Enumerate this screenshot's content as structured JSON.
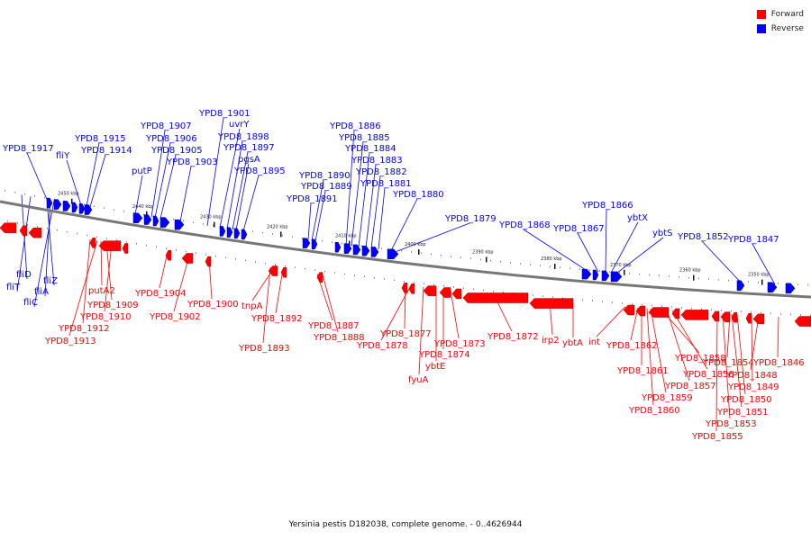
{
  "caption": "Yersinia pestis D182038, complete genome. - 0..4626944",
  "legend": {
    "forward": {
      "label": "Forward",
      "color": "#ff0000"
    },
    "reverse": {
      "label": "Reverse",
      "color": "#0000ff"
    }
  },
  "colors": {
    "backbone": "#777777",
    "forward": "#ff0000",
    "reverse": "#0000ff"
  },
  "scale_ticks": [
    "2450 kbp",
    "2440 kbp",
    "2430 kbp",
    "2420 kbp",
    "2410 kbp",
    "2400 kbp",
    "2390 kbp",
    "2380 kbp",
    "2370 kbp",
    "2360 kbp",
    "2350 kbp"
  ],
  "reverse_labels": [
    "YPD8_1917",
    "fliY",
    "YPD8_1915",
    "YPD8_1914",
    "putP",
    "YPD8_1907",
    "YPD8_1906",
    "YPD8_1905",
    "YPD8_1903",
    "YPD8_1901",
    "uvrY",
    "YPD8_1898",
    "YPD8_1897",
    "pgsA",
    "YPD8_1895",
    "YPD8_1891",
    "YPD8_1890",
    "YPD8_1889",
    "YPD8_1886",
    "YPD8_1885",
    "YPD8_1884",
    "YPD8_1883",
    "YPD8_1882",
    "YPD8_1881",
    "YPD8_1880",
    "YPD8_1879",
    "YPD8_1868",
    "YPD8_1867",
    "YPD8_1866",
    "ybtX",
    "ybtS",
    "YPD8_1852",
    "YPD8_1847",
    "fliD",
    "fliT",
    "fliZ",
    "fliA",
    "fliC"
  ],
  "forward_labels": [
    "putA2",
    "YPD8_1909",
    "YPD8_1910",
    "YPD8_1912",
    "YPD8_1913",
    "YPD8_1904",
    "YPD8_1902",
    "YPD8_1900",
    "tnpA",
    "YPD8_1892",
    "YPD8_1893",
    "YPD8_1887",
    "YPD8_1888",
    "YPD8_1877",
    "YPD8_1878",
    "YPD8_1873",
    "YPD8_1874",
    "ybtE",
    "fyuA",
    "YPD8_1872",
    "irp2",
    "ybtA",
    "int",
    "YPD8_1862",
    "YPD8_1861",
    "YPD8_1859",
    "YPD8_1860",
    "YPD8_1858",
    "YPD8_1857",
    "YPD8_1856",
    "YPD8_1855",
    "YPD8_1854",
    "YPD8_1853",
    "YPD8_1851",
    "YPD8_1850",
    "YPD8_1849",
    "YPD8_1848",
    "YPD8_1846"
  ]
}
